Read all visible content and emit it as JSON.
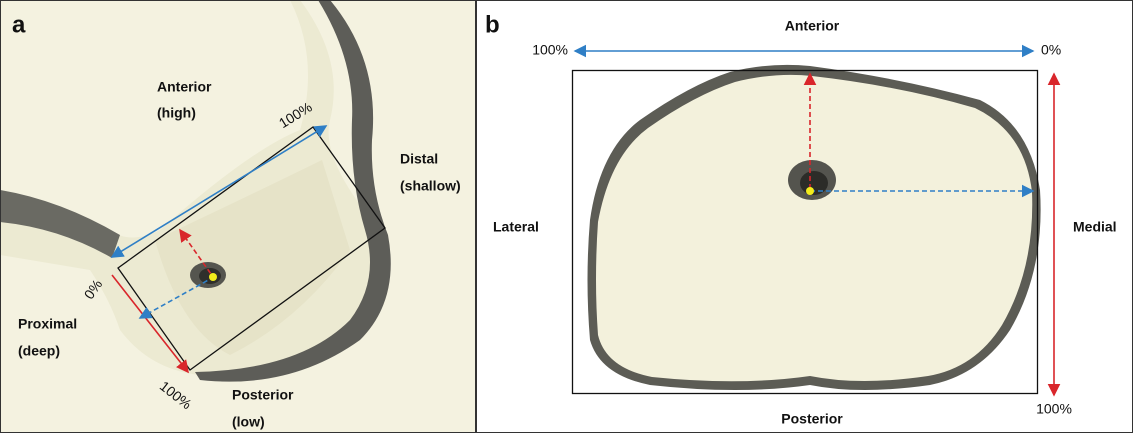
{
  "panel_a": {
    "label": "a",
    "anterior": "Anterior",
    "anterior_sub": "(high)",
    "distal": "Distal",
    "distal_sub": "(shallow)",
    "proximal": "Proximal",
    "proximal_sub": "(deep)",
    "posterior": "Posterior",
    "posterior_sub": "(low)",
    "axis_top_end": "100%",
    "axis_start": "0%",
    "axis_side_end": "100%"
  },
  "panel_b": {
    "label": "b",
    "anterior": "Anterior",
    "posterior": "Posterior",
    "lateral": "Lateral",
    "medial": "Medial",
    "axis_top_start": "100%",
    "axis_top_end": "0%",
    "axis_side_end": "100%"
  }
}
